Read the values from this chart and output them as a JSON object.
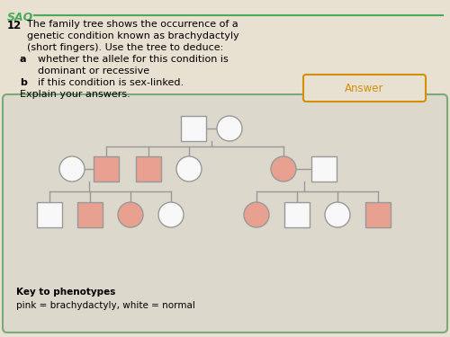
{
  "bg_color": "#e8e0d0",
  "box_bg": "#ddd8cc",
  "border_color": "#7aaa7a",
  "title_color": "#4aaa5a",
  "line_color": "#999999",
  "pink": "#e8a090",
  "white": "#f8f8f8",
  "outline": "#999999",
  "answer_button_color": "#d4900a",
  "answer_button_text": "Answer",
  "key_text_bold": "Key to phenotypes",
  "key_text": "pink = brachydactyly, white = normal",
  "saq_text": "SAQ",
  "q_number": "12",
  "q_lines": [
    "The family tree shows the occurrence of a",
    "genetic condition known as brachydactyly",
    "(short fingers). Use the tree to deduce:"
  ],
  "qa_label": "a",
  "qa_lines": [
    "whether the allele for this condition is",
    "dominant or recessive"
  ],
  "qb_label": "b",
  "qb_line": "if this condition is sex-linked.",
  "explain_line": "Explain your answers."
}
